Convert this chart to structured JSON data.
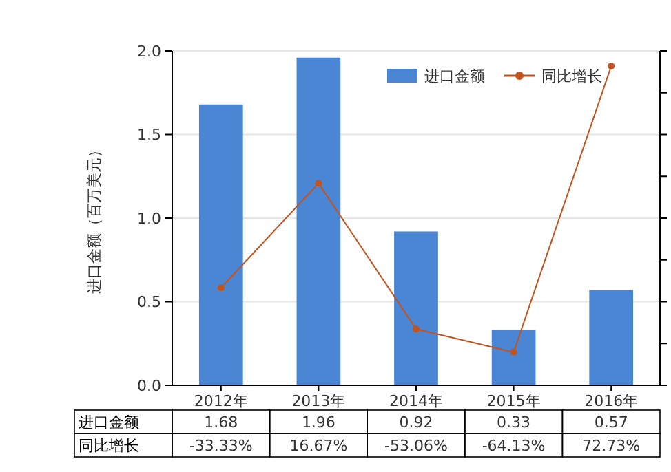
{
  "chart_data": {
    "type": "bar",
    "categories": [
      "2012年",
      "2013年",
      "2014年",
      "2015年",
      "2016年"
    ],
    "series": [
      {
        "name": "进口金额",
        "color": "#4a86d4",
        "values": [
          1.68,
          1.96,
          0.92,
          0.33,
          0.57
        ],
        "value_labels": [
          "1.68",
          "1.96",
          "0.92",
          "0.33",
          "0.57"
        ]
      },
      {
        "name": "同比增长",
        "type": "line",
        "axis": "y2",
        "color": "#c0531f",
        "values": [
          -33.33,
          16.67,
          -53.06,
          -64.13,
          72.73
        ],
        "value_labels": [
          "-33.33%",
          "16.67%",
          "-53.06%",
          "-64.13%",
          "72.73%"
        ]
      }
    ],
    "ylabel": "进口金额（百万美元）",
    "ylim": [
      0,
      2
    ],
    "yticks": [
      {
        "value": 0,
        "label": "0.0"
      },
      {
        "value": 0.5,
        "label": "0.5"
      },
      {
        "value": 1,
        "label": "1.0"
      },
      1.5,
      {
        "value": 2,
        "label": "2.0"
      }
    ],
    "y2lim": [
      -80,
      80
    ],
    "y2ticks": [
      {
        "value": -80,
        "label": null
      },
      {
        "value": -60,
        "label": null
      },
      {
        "value": -40,
        "label": null
      },
      {
        "value": -20,
        "label": null
      },
      {
        "value": 0,
        "label": null
      },
      {
        "value": 20,
        "label": null
      },
      {
        "value": 40,
        "label": null
      },
      {
        "value": 60,
        "label": null
      },
      {
        "value": 80,
        "label": null
      }
    ],
    "grid": "y",
    "legend": "top right",
    "marker": "circle"
  }
}
